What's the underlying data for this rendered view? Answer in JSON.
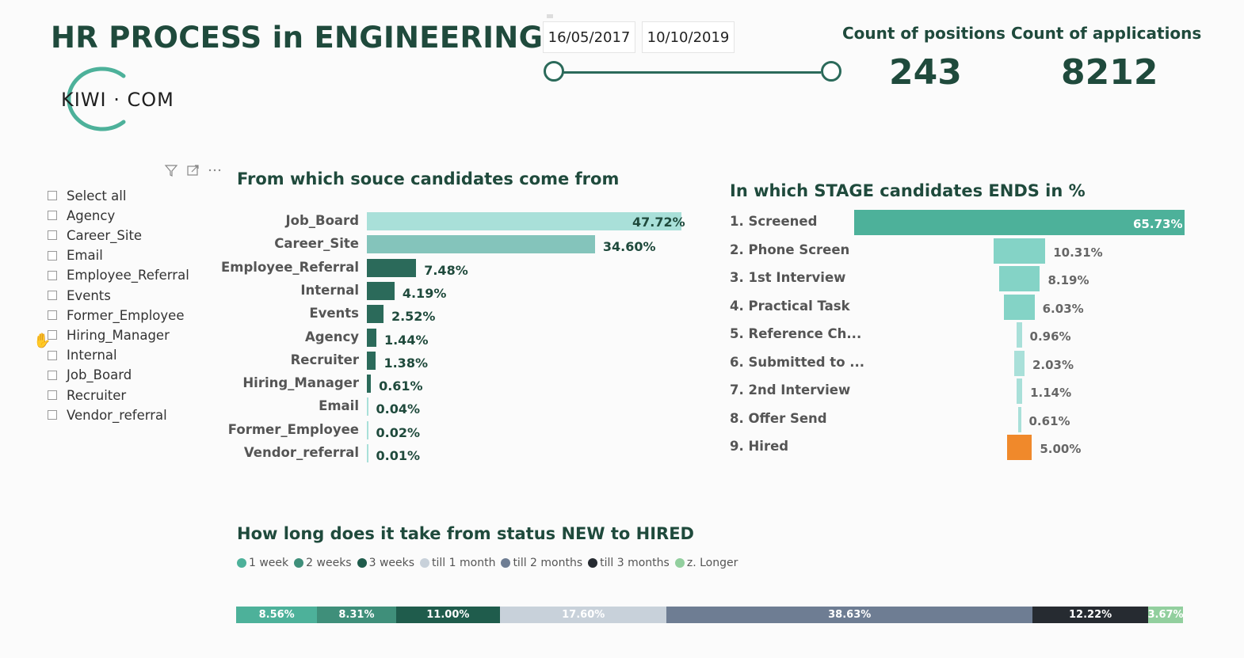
{
  "header": {
    "title": "HR PROCESS in ENGINEERING",
    "logo_text": "KIWI · COM"
  },
  "date_range": {
    "start": "16/05/2017",
    "end": "10/10/2019",
    "slider_start_fraction": 0.0,
    "slider_end_fraction": 1.0
  },
  "kpis": [
    {
      "label": "Count of positions",
      "value": "243"
    },
    {
      "label": "Count of applications",
      "value": "8212"
    }
  ],
  "slicer": {
    "items": [
      "Select all",
      "Agency",
      "Career_Site",
      "Email",
      "Employee_Referral",
      "Events",
      "Former_Employee",
      "Hiring_Manager",
      "Internal",
      "Job_Board",
      "Recruiter",
      "Vendor_referral"
    ],
    "icons": [
      "filter-icon",
      "focus-mode-icon",
      "more-options-icon"
    ]
  },
  "colors": {
    "brand_dark": "#1f4a3c",
    "teal": "#4db19a",
    "light_teal": "#a7dfd7",
    "mid_teal": "#84c4bb",
    "dark_green": "#2b6a5a",
    "orange": "#f0892b"
  },
  "chart_data": [
    {
      "type": "bar",
      "orientation": "horizontal",
      "title": "From which souce candidates come from",
      "categories": [
        "Job_Board",
        "Career_Site",
        "Employee_Referral",
        "Internal",
        "Events",
        "Agency",
        "Recruiter",
        "Hiring_Manager",
        "Email",
        "Former_Employee",
        "Vendor_referral"
      ],
      "values": [
        47.72,
        34.6,
        7.48,
        4.19,
        2.52,
        1.44,
        1.38,
        0.61,
        0.04,
        0.02,
        0.01
      ],
      "labels": [
        "47.72%",
        "34.60%",
        "7.48%",
        "4.19%",
        "2.52%",
        "1.44%",
        "1.38%",
        "0.61%",
        "0.04%",
        "0.02%",
        "0.01%"
      ],
      "colors": [
        "#a9e0d9",
        "#84c4bb",
        "#2b6a5a",
        "#2b6a5a",
        "#2b6a5a",
        "#2b6a5a",
        "#2b6a5a",
        "#2b6a5a",
        "#a9e0d9",
        "#a9e0d9",
        "#a9e0d9"
      ],
      "xlim": [
        0,
        47.72
      ]
    },
    {
      "type": "bar",
      "orientation": "funnel",
      "title": "In which STAGE candidates ENDS in %",
      "categories": [
        "1. Screened",
        "2. Phone Screen",
        "3. 1st Interview",
        "4. Practical Task",
        "5. Reference Ch...",
        "6. Submitted to ...",
        "7. 2nd Interview",
        "8. Offer Send",
        "9. Hired"
      ],
      "values": [
        65.73,
        10.31,
        8.19,
        6.03,
        0.96,
        2.03,
        1.14,
        0.61,
        5.0
      ],
      "labels": [
        "65.73%",
        "10.31%",
        "8.19%",
        "6.03%",
        "0.96%",
        "2.03%",
        "1.14%",
        "0.61%",
        "5.00%"
      ],
      "colors": [
        "#4db19a",
        "#84d3c6",
        "#84d3c6",
        "#84d3c6",
        "#a9e0d9",
        "#a9e0d9",
        "#a9e0d9",
        "#a9e0d9",
        "#f0892b"
      ]
    },
    {
      "type": "bar",
      "orientation": "stacked-100",
      "title": "How long does it take from status NEW to HIRED",
      "series": [
        {
          "name": "1 week",
          "value": 8.56,
          "label": "8.56%",
          "color": "#4db19a"
        },
        {
          "name": "2 weeks",
          "value": 8.31,
          "label": "8.31%",
          "color": "#3f8f7a"
        },
        {
          "name": "3 weeks",
          "value": 11.0,
          "label": "11.00%",
          "color": "#1f5c4c"
        },
        {
          "name": "till 1 month",
          "value": 17.6,
          "label": "17.60%",
          "color": "#c8d1da"
        },
        {
          "name": "till 2 months",
          "value": 38.63,
          "label": "38.63%",
          "color": "#6e7d93"
        },
        {
          "name": "till 3 months",
          "value": 12.22,
          "label": "12.22%",
          "color": "#262b31"
        },
        {
          "name": "z. Longer",
          "value": 3.67,
          "label": "3.67%",
          "color": "#92cf9e"
        }
      ]
    }
  ]
}
